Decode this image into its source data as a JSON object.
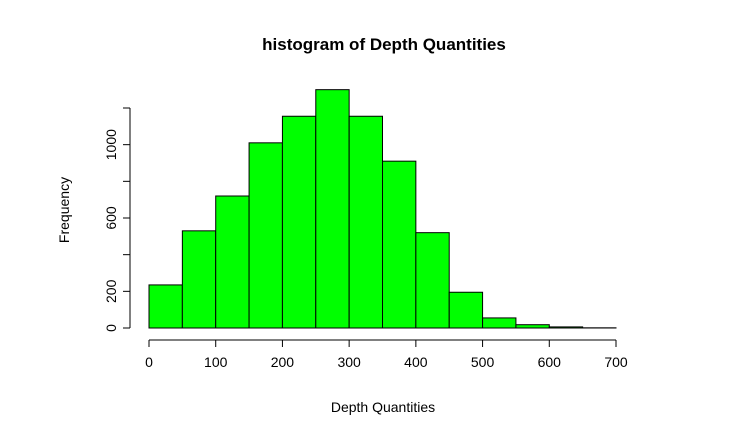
{
  "chart_data": {
    "type": "bar",
    "title": "histogram of Depth Quantities",
    "xlabel": "Depth Quantities",
    "ylabel": "Frequency",
    "xlim": [
      0,
      700
    ],
    "ylim": [
      0,
      1200
    ],
    "bar_color": "#00ff00",
    "edge_color": "#000000",
    "bin_width": 50,
    "x_ticks": [
      0,
      100,
      200,
      300,
      400,
      500,
      600,
      700
    ],
    "y_ticks": [
      0,
      200,
      400,
      600,
      800,
      1000,
      1200
    ],
    "y_tick_labels": [
      "0",
      "200",
      "",
      "600",
      "",
      "1000",
      ""
    ],
    "bins": [
      {
        "start": 0,
        "end": 50,
        "count": 235
      },
      {
        "start": 50,
        "end": 100,
        "count": 530
      },
      {
        "start": 100,
        "end": 150,
        "count": 720
      },
      {
        "start": 150,
        "end": 200,
        "count": 1010
      },
      {
        "start": 200,
        "end": 250,
        "count": 1155
      },
      {
        "start": 250,
        "end": 300,
        "count": 1300
      },
      {
        "start": 300,
        "end": 350,
        "count": 1155
      },
      {
        "start": 350,
        "end": 400,
        "count": 910
      },
      {
        "start": 400,
        "end": 450,
        "count": 520
      },
      {
        "start": 450,
        "end": 500,
        "count": 195
      },
      {
        "start": 500,
        "end": 550,
        "count": 55
      },
      {
        "start": 550,
        "end": 600,
        "count": 18
      },
      {
        "start": 600,
        "end": 650,
        "count": 6
      },
      {
        "start": 650,
        "end": 700,
        "count": 1
      }
    ],
    "grid": false,
    "legend": "none"
  }
}
